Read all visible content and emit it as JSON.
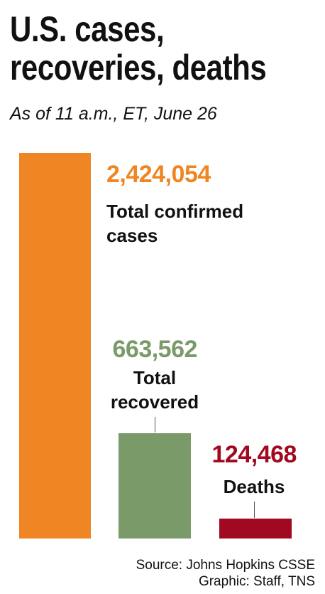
{
  "chart_data": {
    "type": "bar",
    "title": "U.S. cases, recoveries, deaths",
    "subtitle": "As of 11 a.m., ET, June 26",
    "categories": [
      "Total confirmed cases",
      "Total recovered",
      "Deaths"
    ],
    "values": [
      2424054,
      663562,
      124468
    ],
    "value_labels": [
      "2,424,054",
      "663,562",
      "124,468"
    ],
    "colors": [
      "#f08523",
      "#7a9a6a",
      "#a0091f"
    ],
    "source": "Source: Johns Hopkins CSSE",
    "credit": "Graphic: Staff, TNS"
  }
}
